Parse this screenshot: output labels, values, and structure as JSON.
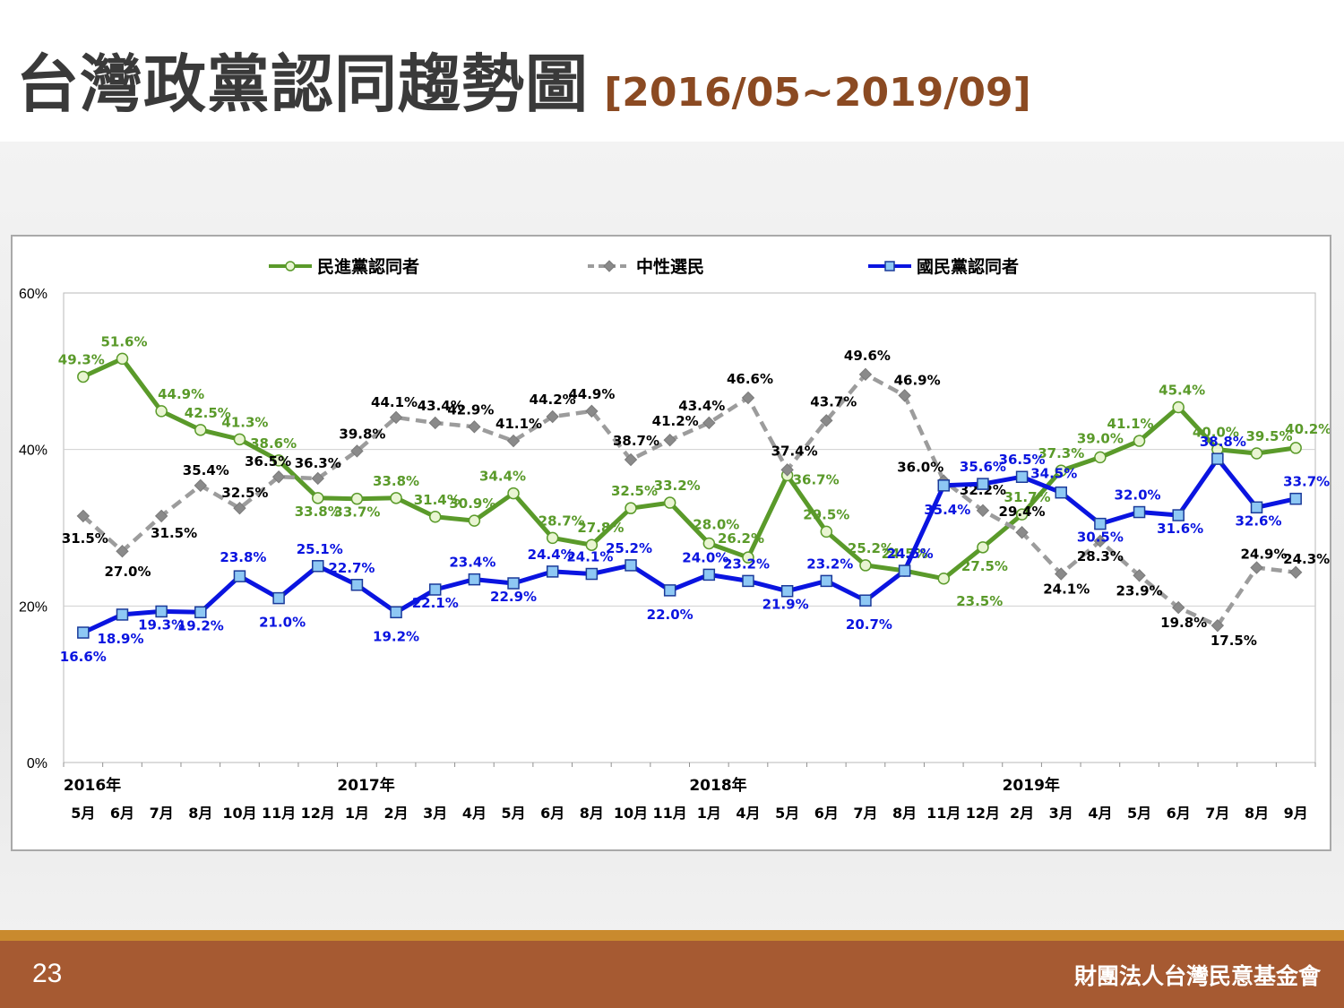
{
  "slide": {
    "title": "台灣政黨認同趨勢圖",
    "subtitle": "[2016/05~2019/09]",
    "page_number": "23",
    "organization": "財團法人台灣民意基金會"
  },
  "chart_data": {
    "type": "line",
    "title": "",
    "xlabel": "",
    "ylabel": "",
    "ylim": [
      0,
      60
    ],
    "y_ticks": [
      "0%",
      "20%",
      "40%",
      "60%"
    ],
    "grid": "horizontal",
    "legend_position": "top",
    "categories": [
      "5月",
      "6月",
      "7月",
      "8月",
      "10月",
      "11月",
      "12月",
      "1月",
      "2月",
      "3月",
      "4月",
      "5月",
      "6月",
      "8月",
      "10月",
      "11月",
      "1月",
      "4月",
      "5月",
      "6月",
      "7月",
      "8月",
      "11月",
      "12月",
      "2月",
      "3月",
      "4月",
      "5月",
      "6月",
      "7月",
      "8月",
      "9月"
    ],
    "year_labels": [
      {
        "label": "2016年",
        "index": 0
      },
      {
        "label": "2017年",
        "index": 7
      },
      {
        "label": "2018年",
        "index": 16
      },
      {
        "label": "2019年",
        "index": 24
      }
    ],
    "series": [
      {
        "name": "民進黨認同者",
        "color": "#5a9a2a",
        "marker": "circle",
        "dash": "",
        "values": [
          49.3,
          51.6,
          44.9,
          42.5,
          41.3,
          38.6,
          33.8,
          33.7,
          33.8,
          31.4,
          30.9,
          34.4,
          28.7,
          27.8,
          32.5,
          33.2,
          28.0,
          26.2,
          36.7,
          29.5,
          25.2,
          24.5,
          23.5,
          27.5,
          31.7,
          37.3,
          39.0,
          41.1,
          45.4,
          40.0,
          39.5,
          40.2
        ],
        "labels": [
          "49.3%",
          "51.6%",
          "44.9%",
          "42.5%",
          "41.3%",
          "38.6%",
          "33.8%",
          "33.7%",
          "33.8%",
          "31.4%",
          "30.9%",
          "34.4%",
          "28.7%",
          "27.8%",
          "32.5%",
          "33.2%",
          "28.0%",
          "26.2%",
          "36.7%",
          "29.5%",
          "25.2%",
          "24.5%",
          "23.5%",
          "27.5%",
          "31.7%",
          "37.3%",
          "39.0%",
          "41.1%",
          "45.4%",
          "40.0%",
          "39.5%",
          "40.2%"
        ]
      },
      {
        "name": "中性選民",
        "color": "#9c9c9c",
        "marker": "diamond",
        "dash": "12,7",
        "values": [
          31.5,
          27.0,
          31.5,
          35.4,
          32.5,
          36.5,
          36.3,
          39.8,
          44.1,
          43.4,
          42.9,
          41.1,
          44.2,
          44.9,
          38.7,
          41.2,
          43.4,
          46.6,
          37.4,
          43.7,
          49.6,
          46.9,
          36.0,
          32.2,
          29.4,
          24.1,
          28.3,
          23.9,
          19.8,
          17.5,
          24.9,
          24.3
        ],
        "labels": [
          "31.5%",
          "27.0%",
          "31.5%",
          "35.4%",
          "32.5%",
          "36.5%",
          "36.3%",
          "39.8%",
          "44.1%",
          "43.4%",
          "42.9%",
          "41.1%",
          "44.2%",
          "44.9%",
          "38.7%",
          "41.2%",
          "43.4%",
          "46.6%",
          "37.4%",
          "43.7%",
          "49.6%",
          "46.9%",
          "36.0%",
          "32.2%",
          "29.4%",
          "24.1%",
          "28.3%",
          "23.9%",
          "19.8%",
          "17.5%",
          "24.9%",
          "24.3%"
        ]
      },
      {
        "name": "國民黨認同者",
        "color": "#0a14e0",
        "marker": "square",
        "dash": "",
        "values": [
          16.6,
          18.9,
          19.3,
          19.2,
          23.8,
          21.0,
          25.1,
          22.7,
          19.2,
          22.1,
          23.4,
          22.9,
          24.4,
          24.1,
          25.2,
          22.0,
          24.0,
          23.2,
          21.9,
          23.2,
          20.7,
          24.5,
          35.4,
          35.6,
          36.5,
          34.5,
          30.5,
          32.0,
          31.6,
          38.8,
          32.6,
          33.7
        ],
        "labels": [
          "16.6%",
          "18.9%",
          "19.3%",
          "19.2%",
          "23.8%",
          "21.0%",
          "25.1%",
          "22.7%",
          "19.2%",
          "22.1%",
          "23.4%",
          "22.9%",
          "24.4%",
          "24.1%",
          "25.2%",
          "22.0%",
          "24.0%",
          "23.2%",
          "21.9%",
          "23.2%",
          "20.7%",
          "24.5%",
          "35.4%",
          "35.6%",
          "36.5%",
          "34.5%",
          "30.5%",
          "32.0%",
          "31.6%",
          "38.8%",
          "32.6%",
          "33.7%"
        ]
      }
    ]
  }
}
